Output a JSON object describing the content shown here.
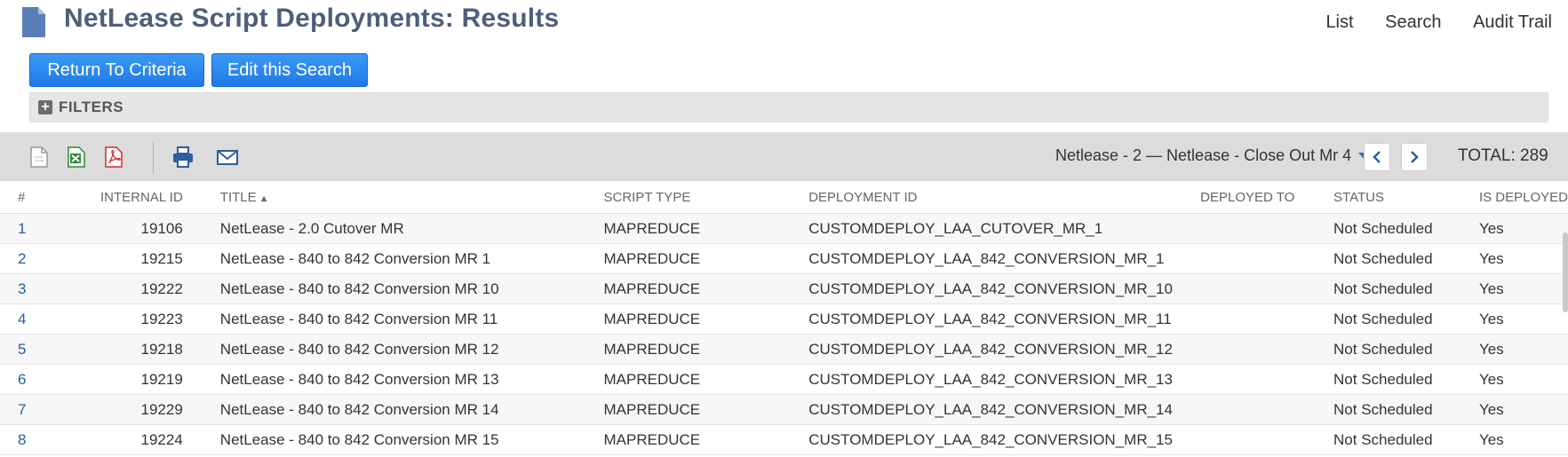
{
  "header": {
    "title": "NetLease Script Deployments: Results",
    "links": [
      "List",
      "Search",
      "Audit Trail"
    ]
  },
  "buttons": {
    "return_label": "Return To Criteria",
    "edit_label": "Edit this Search"
  },
  "filters": {
    "label": "FILTERS"
  },
  "toolbar": {
    "range_label": "Netlease - 2 — Netlease - Close Out Mr 4",
    "total_label": "TOTAL: 289",
    "icons": [
      "export-csv-icon",
      "export-excel-icon",
      "export-pdf-icon",
      "print-icon",
      "email-icon"
    ]
  },
  "table": {
    "columns": [
      "#",
      "INTERNAL ID",
      "TITLE",
      "SCRIPT TYPE",
      "DEPLOYMENT ID",
      "DEPLOYED TO",
      "STATUS",
      "IS DEPLOYED"
    ],
    "rows": [
      {
        "num": "1",
        "id": "19106",
        "title": "NetLease - 2.0 Cutover MR",
        "type": "MAPREDUCE",
        "deployment": "CUSTOMDEPLOY_LAA_CUTOVER_MR_1",
        "to": "",
        "status": "Not Scheduled",
        "deployed": "Yes"
      },
      {
        "num": "2",
        "id": "19215",
        "title": "NetLease - 840 to 842 Conversion MR 1",
        "type": "MAPREDUCE",
        "deployment": "CUSTOMDEPLOY_LAA_842_CONVERSION_MR_1",
        "to": "",
        "status": "Not Scheduled",
        "deployed": "Yes"
      },
      {
        "num": "3",
        "id": "19222",
        "title": "NetLease - 840 to 842 Conversion MR 10",
        "type": "MAPREDUCE",
        "deployment": "CUSTOMDEPLOY_LAA_842_CONVERSION_MR_10",
        "to": "",
        "status": "Not Scheduled",
        "deployed": "Yes"
      },
      {
        "num": "4",
        "id": "19223",
        "title": "NetLease - 840 to 842 Conversion MR 11",
        "type": "MAPREDUCE",
        "deployment": "CUSTOMDEPLOY_LAA_842_CONVERSION_MR_11",
        "to": "",
        "status": "Not Scheduled",
        "deployed": "Yes"
      },
      {
        "num": "5",
        "id": "19218",
        "title": "NetLease - 840 to 842 Conversion MR 12",
        "type": "MAPREDUCE",
        "deployment": "CUSTOMDEPLOY_LAA_842_CONVERSION_MR_12",
        "to": "",
        "status": "Not Scheduled",
        "deployed": "Yes"
      },
      {
        "num": "6",
        "id": "19219",
        "title": "NetLease - 840 to 842 Conversion MR 13",
        "type": "MAPREDUCE",
        "deployment": "CUSTOMDEPLOY_LAA_842_CONVERSION_MR_13",
        "to": "",
        "status": "Not Scheduled",
        "deployed": "Yes"
      },
      {
        "num": "7",
        "id": "19229",
        "title": "NetLease - 840 to 842 Conversion MR 14",
        "type": "MAPREDUCE",
        "deployment": "CUSTOMDEPLOY_LAA_842_CONVERSION_MR_14",
        "to": "",
        "status": "Not Scheduled",
        "deployed": "Yes"
      },
      {
        "num": "8",
        "id": "19224",
        "title": "NetLease - 840 to 842 Conversion MR 15",
        "type": "MAPREDUCE",
        "deployment": "CUSTOMDEPLOY_LAA_842_CONVERSION_MR_15",
        "to": "",
        "status": "Not Scheduled",
        "deployed": "Yes"
      }
    ]
  },
  "colors": {
    "accent": "#1f7ae8",
    "title": "#4d5f79",
    "link": "#2a5d9c"
  }
}
